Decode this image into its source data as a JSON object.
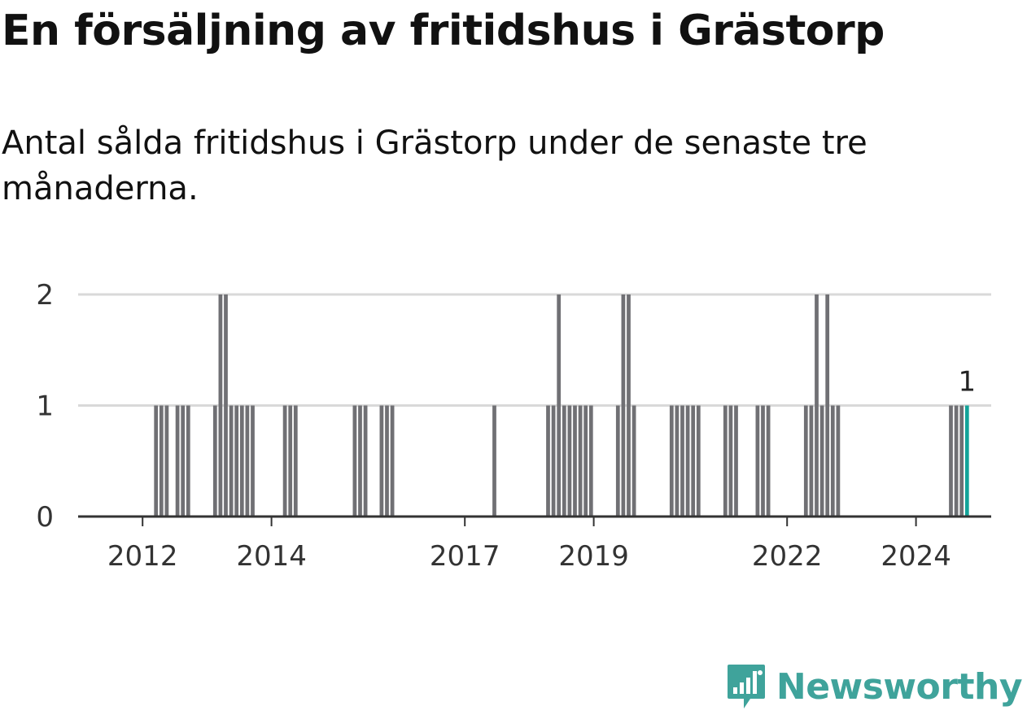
{
  "header": {
    "title": "En försäljning av fritidshus i Grästorp",
    "subtitle": "Antal sålda fritidshus i Grästorp under de senaste tre månaderna."
  },
  "brand": {
    "name": "Newsworthy",
    "color": "#3fa39b",
    "icon": "newsworthy-logo-icon"
  },
  "chart_data": {
    "type": "bar",
    "title": "En försäljning av fritidshus i Grästorp",
    "subtitle": "Antal sålda fritidshus i Grästorp under de senaste tre månaderna.",
    "xlabel": "",
    "ylabel": "",
    "ylim": [
      0,
      2
    ],
    "yticks": [
      0,
      1,
      2
    ],
    "xlim": [
      "2011-01",
      "2025-03"
    ],
    "xticks": [
      {
        "date": "2012-01",
        "label": "2012"
      },
      {
        "date": "2014-01",
        "label": "2014"
      },
      {
        "date": "2017-01",
        "label": "2017"
      },
      {
        "date": "2019-01",
        "label": "2019"
      },
      {
        "date": "2022-01",
        "label": "2022"
      },
      {
        "date": "2024-01",
        "label": "2024"
      }
    ],
    "grid": true,
    "legend": "none",
    "bar_color": "#707074",
    "highlight_color": "#13a399",
    "highlight_label": "1",
    "series": [
      {
        "points": [
          {
            "x": "2012-03",
            "y": 1
          },
          {
            "x": "2012-04",
            "y": 1
          },
          {
            "x": "2012-05",
            "y": 1
          },
          {
            "x": "2012-07",
            "y": 1
          },
          {
            "x": "2012-08",
            "y": 1
          },
          {
            "x": "2012-09",
            "y": 1
          },
          {
            "x": "2013-02",
            "y": 1
          },
          {
            "x": "2013-03",
            "y": 2
          },
          {
            "x": "2013-04",
            "y": 2
          },
          {
            "x": "2013-05",
            "y": 1
          },
          {
            "x": "2013-06",
            "y": 1
          },
          {
            "x": "2013-07",
            "y": 1
          },
          {
            "x": "2013-08",
            "y": 1
          },
          {
            "x": "2013-09",
            "y": 1
          },
          {
            "x": "2014-03",
            "y": 1
          },
          {
            "x": "2014-04",
            "y": 1
          },
          {
            "x": "2014-05",
            "y": 1
          },
          {
            "x": "2015-04",
            "y": 1
          },
          {
            "x": "2015-05",
            "y": 1
          },
          {
            "x": "2015-06",
            "y": 1
          },
          {
            "x": "2015-09",
            "y": 1
          },
          {
            "x": "2015-10",
            "y": 1
          },
          {
            "x": "2015-11",
            "y": 1
          },
          {
            "x": "2017-06",
            "y": 1
          },
          {
            "x": "2018-04",
            "y": 1
          },
          {
            "x": "2018-05",
            "y": 1
          },
          {
            "x": "2018-06",
            "y": 2
          },
          {
            "x": "2018-07",
            "y": 1
          },
          {
            "x": "2018-08",
            "y": 1
          },
          {
            "x": "2018-09",
            "y": 1
          },
          {
            "x": "2018-10",
            "y": 1
          },
          {
            "x": "2018-11",
            "y": 1
          },
          {
            "x": "2018-12",
            "y": 1
          },
          {
            "x": "2019-05",
            "y": 1
          },
          {
            "x": "2019-06",
            "y": 2
          },
          {
            "x": "2019-07",
            "y": 2
          },
          {
            "x": "2019-08",
            "y": 1
          },
          {
            "x": "2020-03",
            "y": 1
          },
          {
            "x": "2020-04",
            "y": 1
          },
          {
            "x": "2020-05",
            "y": 1
          },
          {
            "x": "2020-06",
            "y": 1
          },
          {
            "x": "2020-07",
            "y": 1
          },
          {
            "x": "2020-08",
            "y": 1
          },
          {
            "x": "2021-01",
            "y": 1
          },
          {
            "x": "2021-02",
            "y": 1
          },
          {
            "x": "2021-03",
            "y": 1
          },
          {
            "x": "2021-07",
            "y": 1
          },
          {
            "x": "2021-08",
            "y": 1
          },
          {
            "x": "2021-09",
            "y": 1
          },
          {
            "x": "2022-04",
            "y": 1
          },
          {
            "x": "2022-05",
            "y": 1
          },
          {
            "x": "2022-06",
            "y": 2
          },
          {
            "x": "2022-07",
            "y": 1
          },
          {
            "x": "2022-08",
            "y": 2
          },
          {
            "x": "2022-09",
            "y": 1
          },
          {
            "x": "2022-10",
            "y": 1
          },
          {
            "x": "2024-07",
            "y": 1
          },
          {
            "x": "2024-08",
            "y": 1
          },
          {
            "x": "2024-09",
            "y": 1
          },
          {
            "x": "2024-10",
            "y": 1,
            "highlight": true
          }
        ]
      }
    ]
  }
}
